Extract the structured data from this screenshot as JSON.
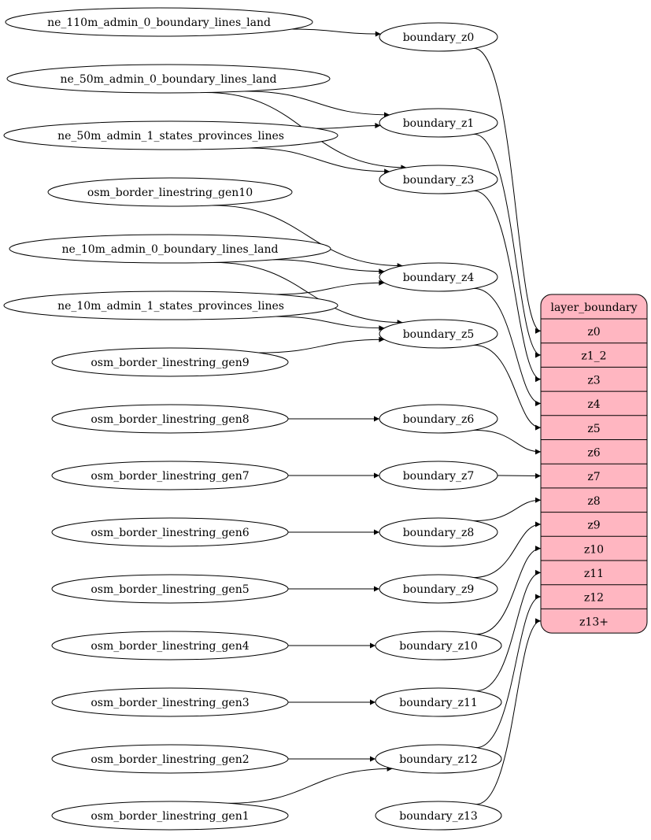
{
  "sources": [
    {
      "id": "ne_110m_admin_0_boundary_lines_land",
      "label": "ne_110m_admin_0_boundary_lines_land"
    },
    {
      "id": "ne_50m_admin_0_boundary_lines_land",
      "label": "ne_50m_admin_0_boundary_lines_land"
    },
    {
      "id": "ne_50m_admin_1_states_provinces_lines",
      "label": "ne_50m_admin_1_states_provinces_lines"
    },
    {
      "id": "osm_border_linestring_gen10",
      "label": "osm_border_linestring_gen10"
    },
    {
      "id": "ne_10m_admin_0_boundary_lines_land",
      "label": "ne_10m_admin_0_boundary_lines_land"
    },
    {
      "id": "ne_10m_admin_1_states_provinces_lines",
      "label": "ne_10m_admin_1_states_provinces_lines"
    },
    {
      "id": "osm_border_linestring_gen9",
      "label": "osm_border_linestring_gen9"
    },
    {
      "id": "osm_border_linestring_gen8",
      "label": "osm_border_linestring_gen8"
    },
    {
      "id": "osm_border_linestring_gen7",
      "label": "osm_border_linestring_gen7"
    },
    {
      "id": "osm_border_linestring_gen6",
      "label": "osm_border_linestring_gen6"
    },
    {
      "id": "osm_border_linestring_gen5",
      "label": "osm_border_linestring_gen5"
    },
    {
      "id": "osm_border_linestring_gen4",
      "label": "osm_border_linestring_gen4"
    },
    {
      "id": "osm_border_linestring_gen3",
      "label": "osm_border_linestring_gen3"
    },
    {
      "id": "osm_border_linestring_gen2",
      "label": "osm_border_linestring_gen2"
    },
    {
      "id": "osm_border_linestring_gen1",
      "label": "osm_border_linestring_gen1"
    }
  ],
  "zoom_nodes": [
    {
      "id": "boundary_z0",
      "label": "boundary_z0",
      "port": "z0"
    },
    {
      "id": "boundary_z1",
      "label": "boundary_z1",
      "port": "z1_2"
    },
    {
      "id": "boundary_z3",
      "label": "boundary_z3",
      "port": "z3"
    },
    {
      "id": "boundary_z4",
      "label": "boundary_z4",
      "port": "z4"
    },
    {
      "id": "boundary_z5",
      "label": "boundary_z5",
      "port": "z5"
    },
    {
      "id": "boundary_z6",
      "label": "boundary_z6",
      "port": "z6"
    },
    {
      "id": "boundary_z7",
      "label": "boundary_z7",
      "port": "z7"
    },
    {
      "id": "boundary_z8",
      "label": "boundary_z8",
      "port": "z8"
    },
    {
      "id": "boundary_z9",
      "label": "boundary_z9",
      "port": "z9"
    },
    {
      "id": "boundary_z10",
      "label": "boundary_z10",
      "port": "z10"
    },
    {
      "id": "boundary_z11",
      "label": "boundary_z11",
      "port": "z11"
    },
    {
      "id": "boundary_z12",
      "label": "boundary_z12",
      "port": "z12"
    },
    {
      "id": "boundary_z13",
      "label": "boundary_z13",
      "port": "z13+"
    }
  ],
  "layer": {
    "title": "layer_boundary",
    "fill": "#ffb6c1",
    "ports": [
      "z0",
      "z1_2",
      "z3",
      "z4",
      "z5",
      "z6",
      "z7",
      "z8",
      "z9",
      "z10",
      "z11",
      "z12",
      "z13+"
    ]
  },
  "edges": [
    [
      "ne_110m_admin_0_boundary_lines_land",
      "boundary_z0"
    ],
    [
      "ne_50m_admin_0_boundary_lines_land",
      "boundary_z1"
    ],
    [
      "ne_50m_admin_0_boundary_lines_land",
      "boundary_z3"
    ],
    [
      "ne_50m_admin_1_states_provinces_lines",
      "boundary_z1"
    ],
    [
      "ne_50m_admin_1_states_provinces_lines",
      "boundary_z3"
    ],
    [
      "osm_border_linestring_gen10",
      "boundary_z4"
    ],
    [
      "ne_10m_admin_0_boundary_lines_land",
      "boundary_z4"
    ],
    [
      "ne_10m_admin_0_boundary_lines_land",
      "boundary_z5"
    ],
    [
      "ne_10m_admin_1_states_provinces_lines",
      "boundary_z4"
    ],
    [
      "ne_10m_admin_1_states_provinces_lines",
      "boundary_z5"
    ],
    [
      "osm_border_linestring_gen9",
      "boundary_z5"
    ],
    [
      "osm_border_linestring_gen8",
      "boundary_z6"
    ],
    [
      "osm_border_linestring_gen7",
      "boundary_z7"
    ],
    [
      "osm_border_linestring_gen6",
      "boundary_z8"
    ],
    [
      "osm_border_linestring_gen5",
      "boundary_z9"
    ],
    [
      "osm_border_linestring_gen4",
      "boundary_z10"
    ],
    [
      "osm_border_linestring_gen3",
      "boundary_z11"
    ],
    [
      "osm_border_linestring_gen2",
      "boundary_z12"
    ],
    [
      "osm_border_linestring_gen1",
      "boundary_z12"
    ]
  ]
}
